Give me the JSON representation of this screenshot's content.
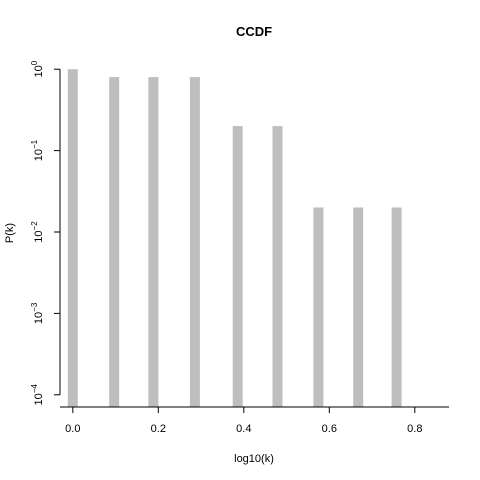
{
  "chart_data": {
    "type": "bar",
    "title": "CCDF",
    "xlabel": "log10(k)",
    "ylabel": "P(k)",
    "y_scale": "log",
    "xlim": [
      -0.03,
      0.88
    ],
    "ylim_log10": [
      -4.15,
      0.15
    ],
    "bar_color": "#bebebe",
    "x_ticks": [
      {
        "value": 0.0,
        "label": "0.0"
      },
      {
        "value": 0.2,
        "label": "0.2"
      },
      {
        "value": 0.4,
        "label": "0.4"
      },
      {
        "value": 0.6,
        "label": "0.6"
      },
      {
        "value": 0.8,
        "label": "0.8"
      }
    ],
    "y_ticks": [
      {
        "exp": 0,
        "base": "10",
        "sup": "0"
      },
      {
        "exp": -1,
        "base": "10",
        "sup": "−1"
      },
      {
        "exp": -2,
        "base": "10",
        "sup": "−2"
      },
      {
        "exp": -3,
        "base": "10",
        "sup": "−3"
      },
      {
        "exp": -4,
        "base": "10",
        "sup": "−4"
      }
    ],
    "x": [
      0.0,
      0.0969,
      0.1884,
      0.2856,
      0.3856,
      0.4789,
      0.5745,
      0.6676,
      0.7575
    ],
    "values": [
      1.0,
      0.8,
      0.8,
      0.8,
      0.2,
      0.2,
      0.02,
      0.02,
      0.02
    ]
  }
}
